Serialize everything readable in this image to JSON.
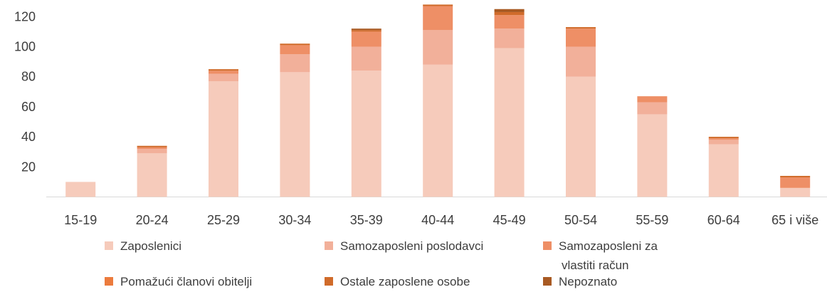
{
  "chart_data": {
    "type": "bar",
    "stacked": true,
    "title": "",
    "xlabel": "",
    "ylabel": "",
    "ylim": [
      0,
      130
    ],
    "yticks": [
      20,
      40,
      60,
      80,
      100,
      120
    ],
    "grid": false,
    "legend_position": "bottom",
    "categories": [
      "15-19",
      "20-24",
      "25-29",
      "30-34",
      "35-39",
      "40-44",
      "45-49",
      "50-54",
      "55-59",
      "60-64",
      "65 i više"
    ],
    "series": [
      {
        "name": "Zaposlenici",
        "color": "#f6cbbb",
        "values": [
          10,
          29,
          77,
          83,
          84,
          88,
          99,
          80,
          55,
          35,
          6
        ]
      },
      {
        "name": "Samozaposleni poslodavci",
        "color": "#f2b09a",
        "values": [
          0,
          3,
          5,
          12,
          16,
          23,
          13,
          20,
          8,
          3,
          0
        ]
      },
      {
        "name": "Samozaposleni za vlastiti račun",
        "label_lines": [
          "Samozaposleni za",
          "vlastiti račun"
        ],
        "color": "#ee8f66",
        "values": [
          0,
          1,
          2,
          6,
          10,
          16,
          9,
          12,
          4,
          1,
          7
        ]
      },
      {
        "name": "Pomažući članovi obitelji",
        "color": "#ec7b3d",
        "values": [
          0,
          0,
          0,
          0,
          0,
          0,
          0,
          0,
          0,
          0,
          0
        ]
      },
      {
        "name": "Ostale zaposlene osobe",
        "color": "#d06b2a",
        "values": [
          0,
          1,
          1,
          1,
          1,
          1,
          2,
          1,
          0,
          1,
          1
        ]
      },
      {
        "name": "Nepoznato",
        "color": "#a85a23",
        "values": [
          0,
          0,
          0,
          0,
          1,
          0,
          2,
          0,
          0,
          0,
          0
        ]
      }
    ]
  }
}
